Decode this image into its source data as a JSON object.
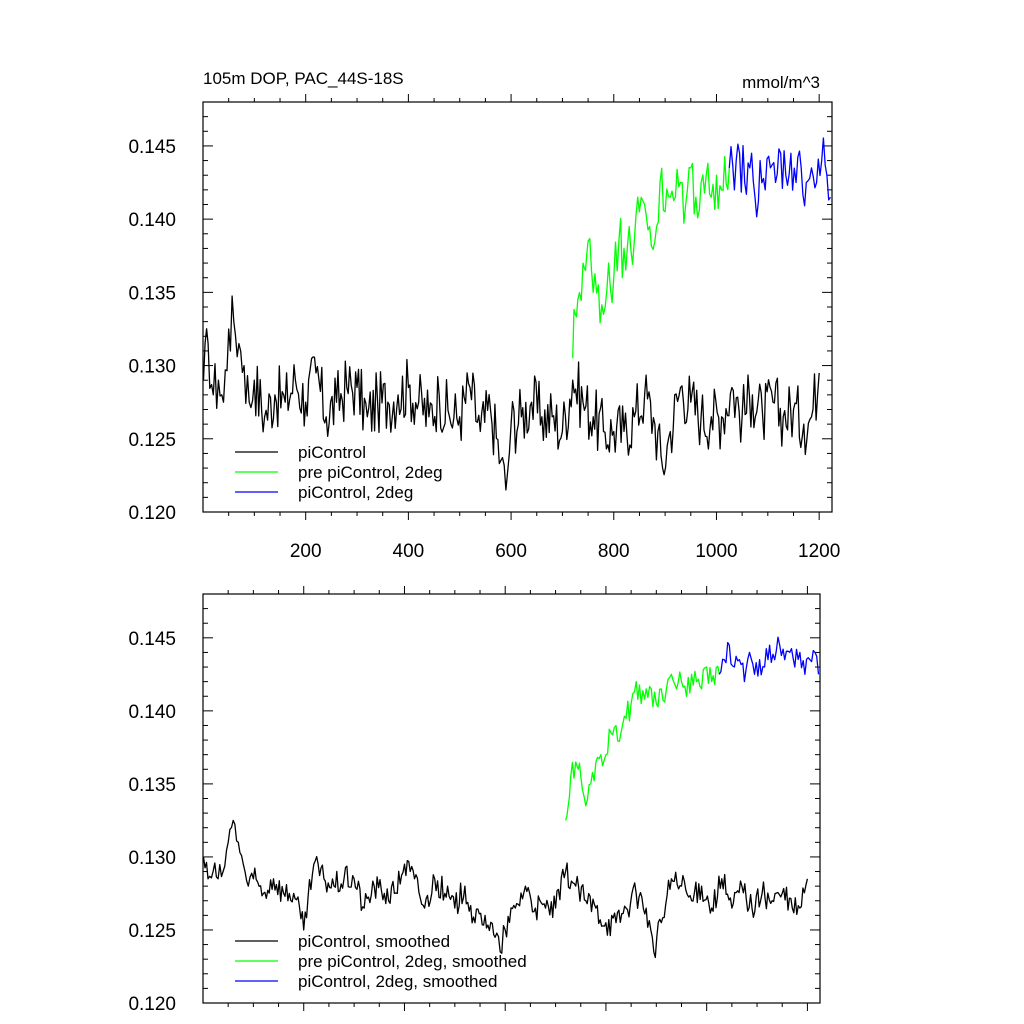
{
  "chart_data": [
    {
      "type": "line",
      "title": "105m DOP, PAC_44S-18S",
      "units": "mmol/m^3",
      "xlim": [
        0,
        1225
      ],
      "ylim": [
        0.12,
        0.148
      ],
      "x_ticks": [
        200,
        400,
        600,
        800,
        1000,
        1200
      ],
      "x_tick_labels": [
        "200",
        "400",
        "600",
        "800",
        "1000",
        "1200"
      ],
      "y_ticks": [
        0.12,
        0.125,
        0.13,
        0.135,
        0.14,
        0.145
      ],
      "y_tick_labels": [
        "0.120",
        "0.125",
        "0.130",
        "0.135",
        "0.140",
        "0.145"
      ],
      "grid": false,
      "legend_position": "bottom-left",
      "series": [
        {
          "name": "piControl",
          "color": "#000000",
          "x": [
            1,
            10,
            20,
            30,
            40,
            50,
            60,
            70,
            80,
            90,
            100,
            120,
            140,
            160,
            180,
            200,
            220,
            240,
            260,
            280,
            300,
            320,
            340,
            360,
            380,
            400,
            420,
            440,
            460,
            480,
            500,
            520,
            540,
            560,
            580,
            590,
            600,
            620,
            640,
            660,
            680,
            700,
            720,
            740,
            760,
            780,
            800,
            820,
            840,
            860,
            880,
            895,
            910,
            930,
            950,
            970,
            990,
            1010,
            1030,
            1050,
            1070,
            1090,
            1110,
            1130,
            1150,
            1170,
            1185,
            1200
          ],
          "y": [
            0.129,
            0.1315,
            0.128,
            0.129,
            0.1275,
            0.1325,
            0.133,
            0.1315,
            0.13,
            0.1275,
            0.129,
            0.1265,
            0.128,
            0.1275,
            0.129,
            0.1275,
            0.1295,
            0.1265,
            0.1275,
            0.1285,
            0.1285,
            0.1265,
            0.1275,
            0.1275,
            0.128,
            0.1285,
            0.1275,
            0.1265,
            0.128,
            0.1265,
            0.1265,
            0.1285,
            0.1255,
            0.127,
            0.1235,
            0.1215,
            0.126,
            0.1265,
            0.1275,
            0.1265,
            0.1265,
            0.1255,
            0.129,
            0.1275,
            0.1265,
            0.1255,
            0.1255,
            0.1255,
            0.1265,
            0.128,
            0.126,
            0.123,
            0.1255,
            0.1285,
            0.1275,
            0.1265,
            0.1265,
            0.1265,
            0.1285,
            0.1265,
            0.128,
            0.1265,
            0.1275,
            0.1265,
            0.127,
            0.126,
            0.1265,
            0.1295
          ]
        },
        {
          "name": "pre piControl, 2deg",
          "color": "#00ff00",
          "x": [
            720,
            725,
            730,
            740,
            745,
            750,
            760,
            770,
            780,
            790,
            800,
            810,
            820,
            830,
            840,
            850,
            860,
            870,
            880,
            890,
            900,
            910,
            920,
            930,
            940,
            950,
            960,
            970,
            980,
            990,
            1000,
            1010,
            1025
          ],
          "y": [
            0.1305,
            0.1335,
            0.1345,
            0.137,
            0.1365,
            0.1385,
            0.135,
            0.1355,
            0.1335,
            0.137,
            0.136,
            0.1385,
            0.138,
            0.1395,
            0.1385,
            0.1405,
            0.141,
            0.1395,
            0.1385,
            0.1425,
            0.1405,
            0.1415,
            0.1415,
            0.1425,
            0.141,
            0.1435,
            0.1415,
            0.1425,
            0.143,
            0.1415,
            0.143,
            0.142,
            0.1435
          ]
        },
        {
          "name": "piControl, 2deg",
          "color": "#0000ff",
          "x": [
            1025,
            1035,
            1045,
            1055,
            1065,
            1075,
            1085,
            1095,
            1105,
            1115,
            1125,
            1135,
            1145,
            1155,
            1165,
            1175,
            1185,
            1195,
            1205,
            1215,
            1222
          ],
          "y": [
            0.1435,
            0.142,
            0.1445,
            0.1425,
            0.1435,
            0.1415,
            0.144,
            0.142,
            0.1435,
            0.1425,
            0.1445,
            0.143,
            0.1445,
            0.1425,
            0.1435,
            0.1425,
            0.1435,
            0.1425,
            0.144,
            0.143,
            0.1415
          ]
        }
      ]
    },
    {
      "type": "line",
      "title": "",
      "xlim": [
        0,
        1225
      ],
      "ylim": [
        0.12,
        0.148
      ],
      "x_ticks": [
        200,
        400,
        600,
        800,
        1000,
        1200
      ],
      "y_ticks": [
        0.12,
        0.125,
        0.13,
        0.135,
        0.14,
        0.145
      ],
      "y_tick_labels": [
        "0.120",
        "0.125",
        "0.130",
        "0.135",
        "0.140",
        "0.145"
      ],
      "grid": false,
      "legend_position": "bottom-left",
      "series": [
        {
          "name": "piControl, smoothed",
          "color": "#000000",
          "x": [
            1,
            10,
            20,
            30,
            40,
            50,
            60,
            70,
            80,
            90,
            100,
            120,
            140,
            160,
            180,
            200,
            220,
            240,
            260,
            280,
            300,
            320,
            340,
            360,
            380,
            400,
            420,
            440,
            460,
            480,
            500,
            520,
            540,
            560,
            580,
            590,
            600,
            620,
            640,
            660,
            680,
            700,
            720,
            740,
            760,
            780,
            800,
            820,
            840,
            860,
            880,
            895,
            910,
            930,
            950,
            970,
            990,
            1010,
            1030,
            1050,
            1070,
            1090,
            1110,
            1130,
            1150,
            1170,
            1185,
            1200
          ],
          "y": [
            0.13,
            0.1285,
            0.129,
            0.1285,
            0.129,
            0.131,
            0.1325,
            0.131,
            0.1295,
            0.128,
            0.1285,
            0.1275,
            0.1285,
            0.1275,
            0.1275,
            0.125,
            0.1295,
            0.1285,
            0.128,
            0.1285,
            0.1285,
            0.1265,
            0.128,
            0.1275,
            0.1275,
            0.1295,
            0.1285,
            0.1265,
            0.1285,
            0.1275,
            0.1265,
            0.128,
            0.1255,
            0.126,
            0.1245,
            0.1235,
            0.125,
            0.1265,
            0.128,
            0.1265,
            0.1265,
            0.1265,
            0.129,
            0.128,
            0.127,
            0.1265,
            0.1255,
            0.1255,
            0.1265,
            0.1275,
            0.1265,
            0.1235,
            0.1255,
            0.1285,
            0.128,
            0.127,
            0.128,
            0.1265,
            0.1285,
            0.1265,
            0.128,
            0.1265,
            0.1275,
            0.127,
            0.1275,
            0.1265,
            0.1265,
            0.1285
          ]
        },
        {
          "name": "pre piControl, 2deg, smoothed",
          "color": "#00ff00",
          "x": [
            720,
            725,
            730,
            740,
            745,
            750,
            760,
            770,
            780,
            790,
            800,
            810,
            820,
            830,
            840,
            850,
            860,
            870,
            880,
            890,
            900,
            910,
            920,
            930,
            940,
            950,
            960,
            970,
            980,
            990,
            1000,
            1010,
            1025
          ],
          "y": [
            0.1325,
            0.1335,
            0.1355,
            0.1365,
            0.136,
            0.1355,
            0.1335,
            0.135,
            0.1365,
            0.137,
            0.137,
            0.1385,
            0.139,
            0.1385,
            0.1395,
            0.1405,
            0.142,
            0.1405,
            0.1415,
            0.1415,
            0.1405,
            0.1415,
            0.1415,
            0.1425,
            0.1415,
            0.142,
            0.141,
            0.1425,
            0.142,
            0.1415,
            0.143,
            0.142,
            0.1425
          ]
        },
        {
          "name": "piControl, 2deg, smoothed",
          "color": "#0000ff",
          "x": [
            1025,
            1035,
            1045,
            1055,
            1065,
            1075,
            1085,
            1095,
            1105,
            1115,
            1125,
            1135,
            1145,
            1155,
            1165,
            1175,
            1185,
            1195,
            1205,
            1215,
            1222
          ],
          "y": [
            0.1425,
            0.1435,
            0.1445,
            0.143,
            0.1435,
            0.142,
            0.144,
            0.1425,
            0.1435,
            0.143,
            0.1445,
            0.1435,
            0.1445,
            0.1435,
            0.144,
            0.143,
            0.144,
            0.1425,
            0.1435,
            0.144,
            0.1425
          ]
        }
      ]
    }
  ]
}
